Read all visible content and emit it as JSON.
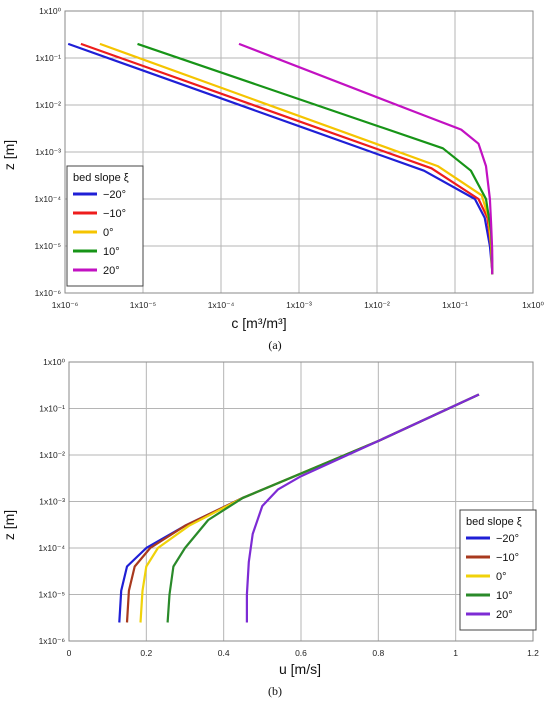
{
  "chart_data": [
    {
      "type": "line",
      "panel": "a",
      "caption": "(a)",
      "xlabel": "c [m³/m³]",
      "ylabel": "z [m]",
      "x_scale": "log",
      "y_scale": "log",
      "xlim": [
        1e-06,
        1
      ],
      "ylim": [
        1e-06,
        1
      ],
      "x_ticks": [
        "1x10⁻⁶",
        "1x10⁻⁵",
        "1x10⁻⁴",
        "1x10⁻³",
        "1x10⁻²",
        "1x10⁻¹",
        "1x10⁰"
      ],
      "y_ticks": [
        "1x10⁰",
        "1x10⁻¹",
        "1x10⁻²",
        "1x10⁻³",
        "1x10⁻⁴",
        "1x10⁻⁵",
        "1x10⁻⁶"
      ],
      "grid": true,
      "legend": {
        "title": "bed slope ξ",
        "placement": "lower-left"
      },
      "series": [
        {
          "name": "−20°",
          "color": "#1f1fd6",
          "x": [
            1.1e-06,
            0.04,
            0.18,
            0.24,
            0.28,
            0.3,
            0.3
          ],
          "y": [
            0.2,
            0.0004,
            0.0001,
            4e-05,
            1e-05,
            3e-06,
            2.5e-06
          ]
        },
        {
          "name": "−10°",
          "color": "#ee1c1c",
          "x": [
            1.6e-06,
            0.05,
            0.2,
            0.26,
            0.29,
            0.3,
            0.3
          ],
          "y": [
            0.2,
            0.00045,
            0.0001,
            4e-05,
            1e-05,
            3e-06,
            2.5e-06
          ]
        },
        {
          "name": "0°",
          "color": "#f5c400",
          "x": [
            2.8e-06,
            0.06,
            0.22,
            0.27,
            0.29,
            0.3,
            0.3
          ],
          "y": [
            0.2,
            0.0005,
            0.00012,
            4e-05,
            1e-05,
            3e-06,
            2.5e-06
          ]
        },
        {
          "name": "10°",
          "color": "#179417",
          "x": [
            8.5e-06,
            0.07,
            0.16,
            0.25,
            0.29,
            0.3,
            0.3
          ],
          "y": [
            0.2,
            0.0012,
            0.0004,
            0.0001,
            2e-05,
            5e-06,
            2.5e-06
          ]
        },
        {
          "name": "20°",
          "color": "#c211c2",
          "x": [
            0.00017,
            0.04,
            0.12,
            0.2,
            0.25,
            0.28,
            0.29,
            0.3,
            0.3
          ],
          "y": [
            0.2,
            0.006,
            0.003,
            0.0015,
            0.0005,
            0.0001,
            3e-05,
            8e-06,
            2.5e-06
          ]
        }
      ]
    },
    {
      "type": "line",
      "panel": "b",
      "caption": "(b)",
      "xlabel": "u [m/s]",
      "ylabel": "z [m]",
      "x_scale": "linear",
      "y_scale": "log",
      "xlim": [
        0,
        1.2
      ],
      "ylim": [
        1e-06,
        1
      ],
      "x_ticks": [
        "0",
        "0.2",
        "0.4",
        "0.6",
        "0.8",
        "1",
        "1.2"
      ],
      "y_ticks": [
        "1x10⁰",
        "1x10⁻¹",
        "1x10⁻²",
        "1x10⁻³",
        "1x10⁻⁴",
        "1x10⁻⁵",
        "1x10⁻⁶"
      ],
      "grid": true,
      "legend": {
        "title": "bed slope ξ",
        "placement": "lower-right"
      },
      "series": [
        {
          "name": "−20°",
          "color": "#1f1fd6",
          "x": [
            0.13,
            0.135,
            0.15,
            0.2,
            0.3,
            0.45,
            0.6,
            0.8,
            1.06
          ],
          "y": [
            2.5e-06,
            1.2e-05,
            4e-05,
            0.0001,
            0.0003,
            0.0012,
            0.004,
            0.02,
            0.2
          ]
        },
        {
          "name": "−10°",
          "color": "#a8391e",
          "x": [
            0.15,
            0.155,
            0.17,
            0.21,
            0.3,
            0.45,
            0.6,
            0.8,
            1.06
          ],
          "y": [
            2.5e-06,
            1.2e-05,
            4e-05,
            0.0001,
            0.0003,
            0.0012,
            0.004,
            0.02,
            0.2
          ]
        },
        {
          "name": "0°",
          "color": "#f0d20a",
          "x": [
            0.185,
            0.19,
            0.2,
            0.23,
            0.31,
            0.45,
            0.6,
            0.8,
            1.06
          ],
          "y": [
            2.5e-06,
            1.2e-05,
            4e-05,
            0.0001,
            0.0003,
            0.0012,
            0.004,
            0.02,
            0.2
          ]
        },
        {
          "name": "10°",
          "color": "#2a8a2a",
          "x": [
            0.255,
            0.26,
            0.27,
            0.3,
            0.36,
            0.45,
            0.6,
            0.8,
            1.06
          ],
          "y": [
            2.5e-06,
            1e-05,
            4e-05,
            0.0001,
            0.0004,
            0.0012,
            0.004,
            0.02,
            0.2
          ]
        },
        {
          "name": "20°",
          "color": "#7d2bd4",
          "x": [
            0.46,
            0.46,
            0.465,
            0.475,
            0.5,
            0.54,
            0.6,
            0.8,
            1.06
          ],
          "y": [
            2.5e-06,
            1e-05,
            5e-05,
            0.0002,
            0.0008,
            0.0018,
            0.0035,
            0.02,
            0.2
          ]
        }
      ]
    }
  ]
}
